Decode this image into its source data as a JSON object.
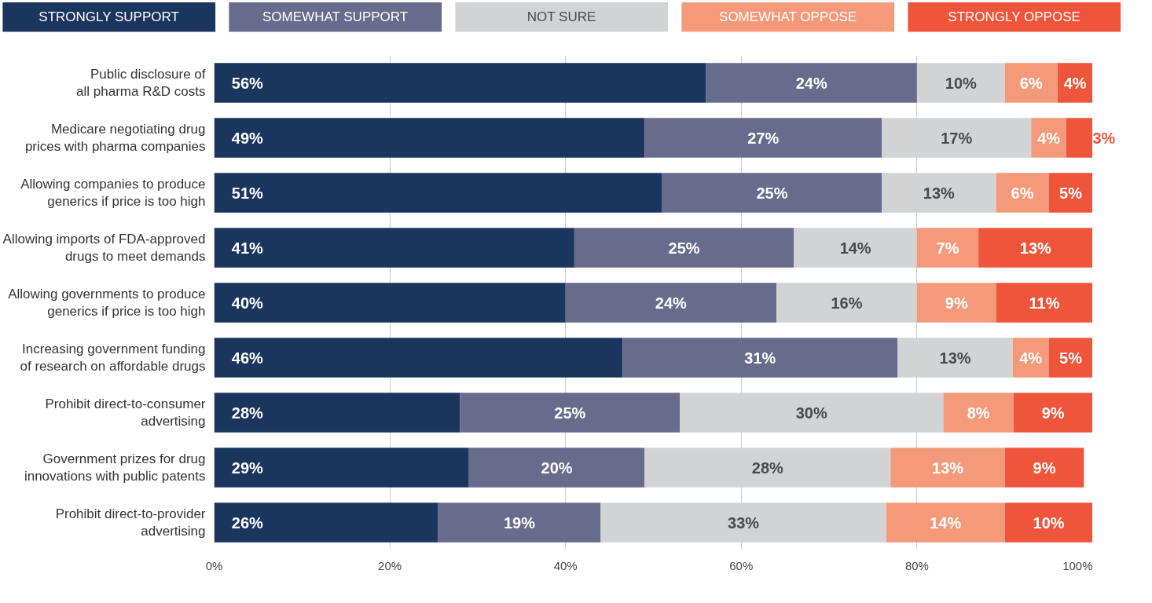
{
  "chart_data": {
    "type": "bar",
    "orientation": "horizontal",
    "stacked": true,
    "legend": "top",
    "grid": "x",
    "categories": [
      "Public disclosure of all pharma R&D costs",
      "Medicare negotiating drug prices with pharma companies",
      "Allowing companies to produce generics if price is too high",
      "Allowing imports of FDA-approved drugs to meet demands",
      "Allowing governments to produce generics if price is too high",
      "Increasing government funding of research on affordable drugs",
      "Prohibit direct-to-consumer advertising",
      "Government prizes for drug innovations with public patents",
      "Prohibit direct-to-provider advertising"
    ],
    "series": [
      {
        "name": "STRONGLY SUPPORT",
        "color": "#1a355e",
        "values": [
          56,
          49,
          51,
          41,
          40,
          46.5,
          28,
          29,
          25.5
        ],
        "value_labels": [
          "56%",
          "49%",
          "51%",
          "41%",
          "40%",
          "46%",
          "28%",
          "29%",
          "26%"
        ]
      },
      {
        "name": "SOMEWHAT SUPPORT",
        "color": "#676b8c",
        "values": [
          24,
          27,
          25,
          25,
          24,
          31.3,
          25,
          20,
          18.5
        ],
        "value_labels": [
          "24%",
          "27%",
          "25%",
          "25%",
          "24%",
          "31%",
          "25%",
          "20%",
          "19%"
        ]
      },
      {
        "name": "NOT SURE",
        "color": "#d2d3d5",
        "values": [
          10,
          17,
          13,
          14,
          16,
          13.1,
          30,
          28,
          32.5
        ],
        "value_labels": [
          "10%",
          "17%",
          "13%",
          "14%",
          "16%",
          "13%",
          "30%",
          "28%",
          "33%"
        ]
      },
      {
        "name": "SOMEWHAT OPPOSE",
        "color": "#f49a7a",
        "values": [
          6,
          4,
          6,
          7,
          9,
          4.1,
          8,
          13,
          13.5
        ],
        "value_labels": [
          "6%",
          "4%",
          "6%",
          "7%",
          "9%",
          "4%",
          "8%",
          "13%",
          "14%"
        ]
      },
      {
        "name": "STRONGLY OPPOSE",
        "color": "#ef553b",
        "values": [
          4,
          3,
          5,
          13,
          11,
          5,
          9,
          9,
          10
        ],
        "value_labels": [
          "4%",
          "3%",
          "5%",
          "13%",
          "11%",
          "5%",
          "9%",
          "9%",
          "10%"
        ]
      }
    ],
    "xlim": [
      0,
      100
    ],
    "xticks": [
      {
        "value": 0,
        "label": "0%"
      },
      {
        "value": 20,
        "label": "20%"
      },
      {
        "value": 40,
        "label": "40%"
      },
      {
        "value": 60,
        "label": "60%"
      },
      {
        "value": 80,
        "label": "80%"
      },
      {
        "value": 100,
        "label": "100%"
      }
    ]
  }
}
